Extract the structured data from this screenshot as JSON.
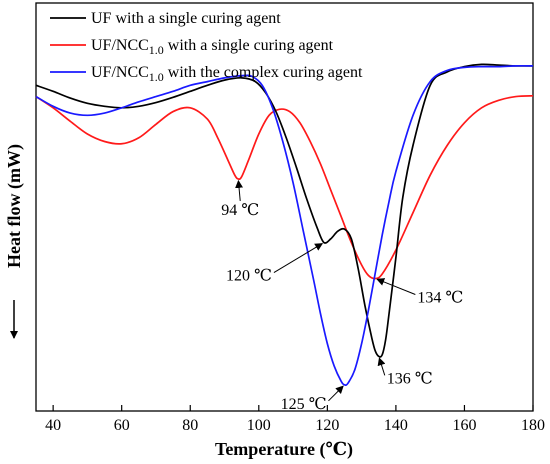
{
  "chart_data": {
    "type": "line",
    "title": "",
    "xlabel": "Temperature (℃)",
    "ylabel": "Heat flow (mW)",
    "xlim": [
      35,
      180
    ],
    "xticks": [
      40,
      60,
      80,
      100,
      120,
      140,
      160,
      180
    ],
    "y_ticks_shown": false,
    "grid": false,
    "legend_position": "top-left",
    "series": [
      {
        "name": "UF with a single curing agent",
        "legend": {
          "pre": "UF with a single curing agent",
          "sub": "",
          "post": ""
        },
        "color": "#000000",
        "x": [
          35,
          40,
          45,
          50,
          55,
          60,
          65,
          70,
          75,
          80,
          85,
          90,
          95,
          99,
          102,
          105,
          108,
          111,
          114,
          117,
          119,
          121,
          123,
          125,
          127,
          129,
          131,
          133,
          134,
          135,
          136,
          137,
          138,
          140,
          142,
          145,
          150,
          155,
          160,
          165,
          170,
          175,
          180
        ],
        "y": [
          -0.1,
          -0.18,
          -0.27,
          -0.34,
          -0.38,
          -0.4,
          -0.38,
          -0.33,
          -0.26,
          -0.18,
          -0.1,
          -0.03,
          0.0,
          -0.05,
          -0.2,
          -0.45,
          -0.8,
          -1.2,
          -1.62,
          -2.0,
          -2.2,
          -2.15,
          -2.05,
          -2.02,
          -2.15,
          -2.55,
          -3.05,
          -3.48,
          -3.65,
          -3.72,
          -3.7,
          -3.5,
          -3.15,
          -2.4,
          -1.6,
          -0.9,
          -0.1,
          0.08,
          0.15,
          0.18,
          0.17,
          0.16,
          0.16
        ]
      },
      {
        "name": "UF/NCC1.0 with a single curing agent",
        "legend": {
          "pre": "UF/NCC",
          "sub": "1.0",
          "post": " with a single curing agent"
        },
        "color": "#ff1a1a",
        "x": [
          35,
          40,
          45,
          50,
          55,
          60,
          65,
          70,
          75,
          80,
          85,
          88,
          91,
          93,
          94,
          95,
          97,
          100,
          103,
          106,
          109,
          112,
          115,
          118,
          121,
          124,
          127,
          130,
          132,
          134,
          136,
          140,
          145,
          150,
          155,
          160,
          165,
          170,
          175,
          180
        ],
        "y": [
          -0.25,
          -0.4,
          -0.58,
          -0.75,
          -0.85,
          -0.88,
          -0.8,
          -0.62,
          -0.45,
          -0.4,
          -0.55,
          -0.8,
          -1.1,
          -1.3,
          -1.35,
          -1.32,
          -1.1,
          -0.75,
          -0.5,
          -0.42,
          -0.45,
          -0.6,
          -0.85,
          -1.15,
          -1.5,
          -1.85,
          -2.2,
          -2.5,
          -2.64,
          -2.68,
          -2.62,
          -2.3,
          -1.8,
          -1.3,
          -0.9,
          -0.6,
          -0.4,
          -0.3,
          -0.25,
          -0.24
        ]
      },
      {
        "name": "UF/NCC1.0 with the complex curing agent",
        "legend": {
          "pre": "UF/NCC",
          "sub": "1.0",
          "post": " with the complex curing agent"
        },
        "color": "#1a1aff",
        "x": [
          35,
          40,
          45,
          50,
          55,
          60,
          65,
          70,
          75,
          80,
          85,
          90,
          95,
          98,
          101,
          104,
          107,
          110,
          113,
          116,
          118,
          120,
          122,
          124,
          125,
          126,
          128,
          130,
          132,
          134,
          136,
          138,
          140,
          145,
          150,
          155,
          160,
          165,
          170,
          175,
          180
        ],
        "y": [
          -0.25,
          -0.38,
          -0.47,
          -0.5,
          -0.47,
          -0.4,
          -0.32,
          -0.25,
          -0.18,
          -0.1,
          -0.05,
          0.0,
          0.03,
          0.02,
          -0.1,
          -0.4,
          -0.85,
          -1.4,
          -2.05,
          -2.7,
          -3.15,
          -3.55,
          -3.85,
          -4.05,
          -4.1,
          -4.08,
          -3.9,
          -3.55,
          -3.1,
          -2.6,
          -2.1,
          -1.65,
          -1.25,
          -0.5,
          -0.05,
          0.1,
          0.14,
          0.15,
          0.15,
          0.16,
          0.16
        ]
      }
    ],
    "annotations": [
      {
        "text": "94 ℃",
        "x": 94,
        "y": -1.35,
        "series": 1,
        "label_dx": 2,
        "label_dy": 36,
        "anchor": "middle"
      },
      {
        "text": "120 ℃",
        "x": 119,
        "y": -2.2,
        "series": 0,
        "label_dx": -52,
        "label_dy": 38,
        "anchor": "end"
      },
      {
        "text": "125 ℃",
        "x": 125,
        "y": -4.1,
        "series": 2,
        "label_dx": -18,
        "label_dy": 24,
        "anchor": "end"
      },
      {
        "text": "134 ℃",
        "x": 134,
        "y": -2.68,
        "series": 1,
        "label_dx": 42,
        "label_dy": 24,
        "anchor": "start"
      },
      {
        "text": "136 ℃",
        "x": 135,
        "y": -3.72,
        "series": 0,
        "label_dx": 8,
        "label_dy": 27,
        "anchor": "start"
      }
    ]
  }
}
